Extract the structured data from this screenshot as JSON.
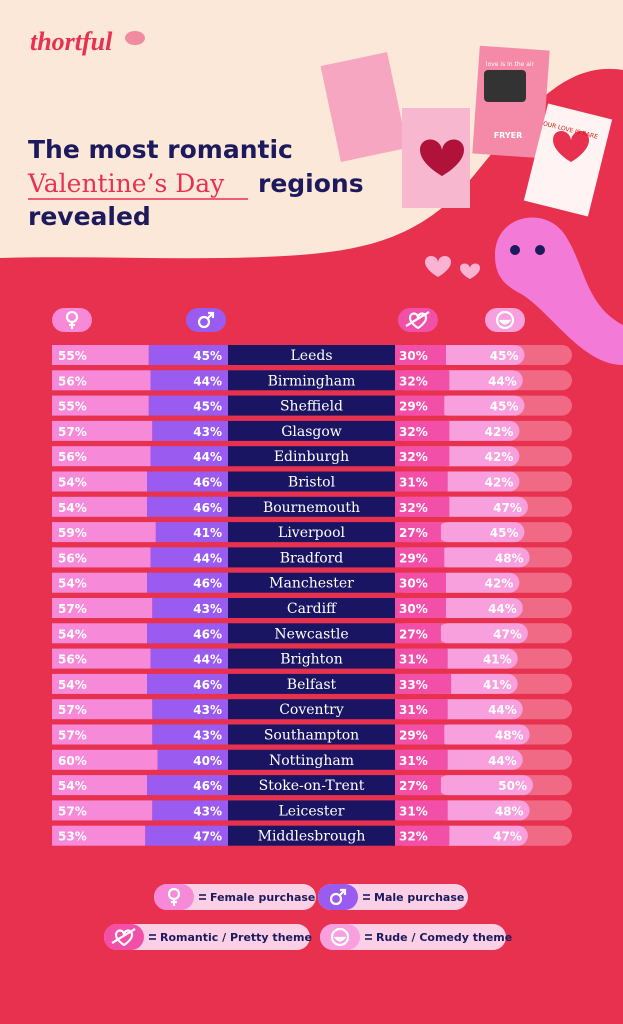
{
  "brand": "thortful",
  "cards": [
    "FRYER",
    "love is in the air",
    "OUR LOVE IS RARE"
  ],
  "chart_data": {
    "type": "table-bars",
    "title": {
      "start": "The most romantic",
      "highlight": "Valentine’s Day",
      "middle": "regions",
      "end": "revealed"
    },
    "categories": [
      "Leeds",
      "Birmingham",
      "Sheffield",
      "Glasgow",
      "Edinburgh",
      "Bristol",
      "Bournemouth",
      "Liverpool",
      "Bradford",
      "Manchester",
      "Cardiff",
      "Newcastle",
      "Brighton",
      "Belfast",
      "Coventry",
      "Southampton",
      "Nottingham",
      "Stoke-on-Trent",
      "Leicester",
      "Middlesbrough"
    ],
    "series": [
      {
        "name": "Female purchase",
        "color": "#f68ad9",
        "values": [
          55,
          56,
          55,
          57,
          56,
          54,
          54,
          59,
          56,
          54,
          57,
          54,
          56,
          54,
          57,
          57,
          60,
          54,
          57,
          53
        ],
        "value_labels": [
          "55%",
          "56%",
          "55%",
          "57%",
          "56%",
          "54%",
          "54%",
          "59%",
          "56%",
          "54%",
          "57%",
          "54%",
          "56%",
          "54%",
          "57%",
          "57%",
          "60%",
          "54%",
          "57%",
          "53%"
        ]
      },
      {
        "name": "Male purchase",
        "color": "#9a5cf0",
        "values": [
          45,
          44,
          45,
          43,
          44,
          46,
          46,
          41,
          44,
          46,
          43,
          46,
          44,
          46,
          43,
          43,
          40,
          46,
          43,
          47
        ],
        "value_labels": [
          "45%",
          "44%",
          "45%",
          "43%",
          "44%",
          "46%",
          "46%",
          "41%",
          "44%",
          "46%",
          "43%",
          "46%",
          "44%",
          "46%",
          "43%",
          "43%",
          "40%",
          "46%",
          "43%",
          "47%"
        ]
      },
      {
        "name": "Romantic / Pretty theme",
        "color": "#f24fa8",
        "values": [
          30,
          32,
          29,
          32,
          32,
          31,
          32,
          27,
          29,
          30,
          30,
          27,
          31,
          33,
          31,
          29,
          31,
          27,
          31,
          32
        ],
        "value_labels": [
          "30%",
          "32%",
          "29%",
          "32%",
          "32%",
          "31%",
          "32%",
          "27%",
          "29%",
          "30%",
          "30%",
          "27%",
          "31%",
          "33%",
          "31%",
          "29%",
          "31%",
          "27%",
          "31%",
          "32%"
        ]
      },
      {
        "name": "Rude / Comedy theme",
        "color": "#f7a0dd",
        "values": [
          45,
          44,
          45,
          42,
          42,
          42,
          47,
          45,
          48,
          42,
          44,
          47,
          41,
          41,
          44,
          48,
          44,
          50,
          48,
          47
        ],
        "value_labels": [
          "45%",
          "44%",
          "45%",
          "42%",
          "42%",
          "42%",
          "47%",
          "45%",
          "48%",
          "42%",
          "44%",
          "47%",
          "41%",
          "41%",
          "44%",
          "48%",
          "44%",
          "50%",
          "48%",
          "47%"
        ]
      }
    ]
  }
}
